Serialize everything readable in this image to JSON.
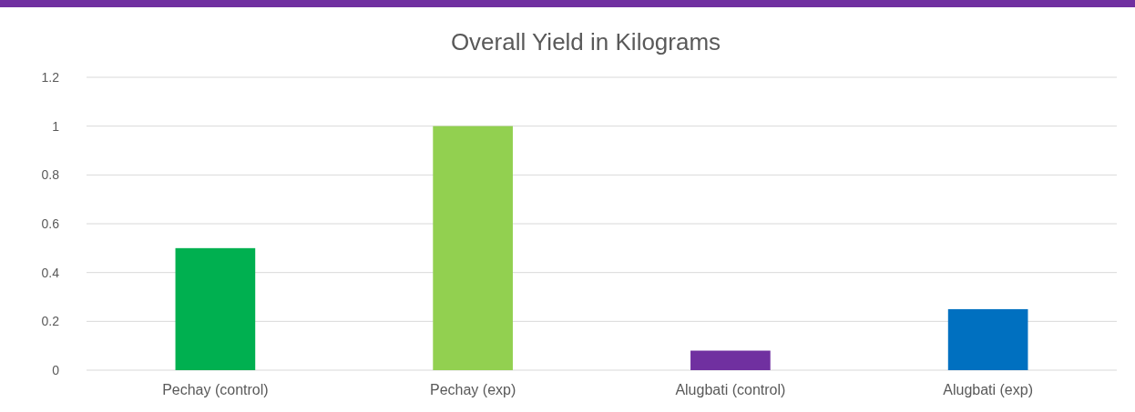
{
  "chart_data": {
    "type": "bar",
    "title": "Overall Yield in Kilograms",
    "categories": [
      "Pechay (control)",
      "Pechay (exp)",
      "Alugbati (control)",
      "Alugbati (exp)"
    ],
    "values": [
      0.5,
      1.0,
      0.08,
      0.25
    ],
    "colors": [
      "#00b050",
      "#92d050",
      "#7030a0",
      "#0070c0"
    ],
    "ylim": [
      0,
      1.2
    ],
    "yticks": [
      0,
      0.2,
      0.4,
      0.6,
      0.8,
      1,
      1.2
    ],
    "grid": "y"
  }
}
